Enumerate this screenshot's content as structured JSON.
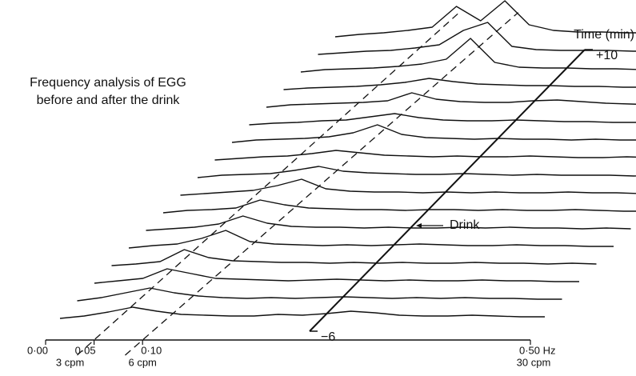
{
  "chart_data": {
    "type": "waterfall",
    "title": [
      "Frequency analysis of EGG",
      "before and after the drink"
    ],
    "x": [
      0,
      0.025,
      0.05,
      0.075,
      0.1,
      0.125,
      0.15,
      0.175,
      0.2,
      0.225,
      0.25,
      0.275,
      0.3,
      0.325,
      0.35,
      0.375,
      0.4,
      0.425,
      0.45,
      0.475,
      0.5
    ],
    "xlim": [
      0,
      0.5
    ],
    "xticks": [
      {
        "value": 0,
        "label": "0·00"
      },
      {
        "value": 0.05,
        "label": "0·05"
      },
      {
        "value": 0.1,
        "label": "0·10"
      },
      {
        "value": 0.5,
        "label": "0·50 Hz"
      }
    ],
    "xticks2": [
      {
        "value": 0.05,
        "label": "3 cpm"
      },
      {
        "value": 0.1,
        "label": "6 cpm"
      },
      {
        "value": 0.5,
        "label": "30 cpm"
      }
    ],
    "ylim": [
      0,
      60
    ],
    "time_label": "Time (min)",
    "tlim": [
      -6,
      10
    ],
    "tticks": [
      {
        "value": -6,
        "label": "−6"
      },
      {
        "value": 10,
        "label": "+10"
      }
    ],
    "annotation": {
      "text": "Drink",
      "time": 0
    },
    "guides": [
      {
        "from": 0.05,
        "to": 0.1
      },
      {
        "from": 0.1,
        "to": 0.16
      }
    ],
    "color": "#111111",
    "series": [
      {
        "time": -6,
        "values": [
          0,
          3,
          8,
          14,
          9,
          5,
          4,
          3,
          3,
          5,
          4,
          6,
          9,
          7,
          4,
          3,
          3,
          4,
          3,
          2,
          2
        ]
      },
      {
        "time": -5,
        "values": [
          0,
          4,
          10,
          16,
          10,
          6,
          4,
          3,
          4,
          3,
          4,
          5,
          4,
          3,
          4,
          3,
          4,
          3,
          3,
          2,
          2
        ]
      },
      {
        "time": -4,
        "values": [
          0,
          3,
          6,
          18,
          12,
          6,
          5,
          4,
          3,
          4,
          5,
          4,
          3,
          4,
          3,
          3,
          4,
          3,
          3,
          2,
          2
        ]
      },
      {
        "time": -3,
        "values": [
          0,
          2,
          5,
          20,
          10,
          6,
          5,
          4,
          4,
          3,
          4,
          3,
          4,
          3,
          3,
          4,
          3,
          3,
          2,
          3,
          2
        ]
      },
      {
        "time": -2,
        "values": [
          0,
          3,
          5,
          12,
          22,
          8,
          5,
          4,
          3,
          4,
          3,
          4,
          5,
          4,
          3,
          3,
          4,
          3,
          3,
          2,
          2
        ]
      },
      {
        "time": -1,
        "values": [
          0,
          2,
          4,
          8,
          18,
          9,
          5,
          4,
          4,
          3,
          4,
          3,
          3,
          4,
          3,
          4,
          3,
          3,
          2,
          3,
          2
        ]
      },
      {
        "time": 0,
        "values": [
          0,
          3,
          4,
          6,
          16,
          10,
          6,
          5,
          4,
          4,
          3,
          4,
          4,
          3,
          4,
          3,
          3,
          4,
          3,
          2,
          2
        ]
      },
      {
        "time": 1,
        "values": [
          0,
          2,
          4,
          6,
          12,
          20,
          8,
          5,
          4,
          4,
          3,
          4,
          3,
          4,
          3,
          3,
          4,
          3,
          3,
          2,
          2
        ]
      },
      {
        "time": 2,
        "values": [
          0,
          3,
          4,
          5,
          9,
          14,
          8,
          6,
          5,
          4,
          4,
          5,
          4,
          3,
          4,
          3,
          3,
          3,
          2,
          3,
          2
        ]
      },
      {
        "time": 3,
        "values": [
          0,
          2,
          4,
          5,
          8,
          12,
          9,
          6,
          5,
          4,
          5,
          4,
          4,
          5,
          4,
          3,
          3,
          4,
          3,
          2,
          2
        ]
      },
      {
        "time": 4,
        "values": [
          0,
          3,
          4,
          5,
          7,
          12,
          22,
          10,
          6,
          5,
          4,
          5,
          4,
          4,
          3,
          4,
          3,
          3,
          3,
          2,
          2
        ]
      },
      {
        "time": 5,
        "values": [
          0,
          2,
          3,
          5,
          6,
          10,
          14,
          9,
          6,
          5,
          5,
          6,
          5,
          4,
          4,
          3,
          3,
          3,
          2,
          3,
          2
        ]
      },
      {
        "time": 6,
        "values": [
          0,
          3,
          4,
          5,
          6,
          8,
          18,
          10,
          7,
          6,
          6,
          8,
          9,
          7,
          5,
          4,
          3,
          3,
          3,
          2,
          2
        ]
      },
      {
        "time": 7,
        "values": [
          0,
          2,
          3,
          4,
          6,
          9,
          14,
          10,
          7,
          6,
          5,
          5,
          4,
          4,
          3,
          3,
          3,
          3,
          2,
          3,
          2
        ]
      },
      {
        "time": 8,
        "values": [
          0,
          3,
          4,
          5,
          7,
          10,
          16,
          42,
          12,
          6,
          5,
          5,
          4,
          4,
          3,
          3,
          3,
          3,
          2,
          2,
          2
        ]
      },
      {
        "time": 9,
        "values": [
          0,
          2,
          4,
          5,
          8,
          12,
          30,
          40,
          10,
          6,
          5,
          5,
          5,
          4,
          4,
          3,
          3,
          3,
          2,
          2,
          2
        ]
      },
      {
        "time": 10,
        "values": [
          0,
          3,
          5,
          8,
          12,
          38,
          20,
          45,
          15,
          8,
          6,
          6,
          5,
          5,
          4,
          4,
          6,
          4,
          3,
          3,
          2
        ]
      }
    ]
  }
}
